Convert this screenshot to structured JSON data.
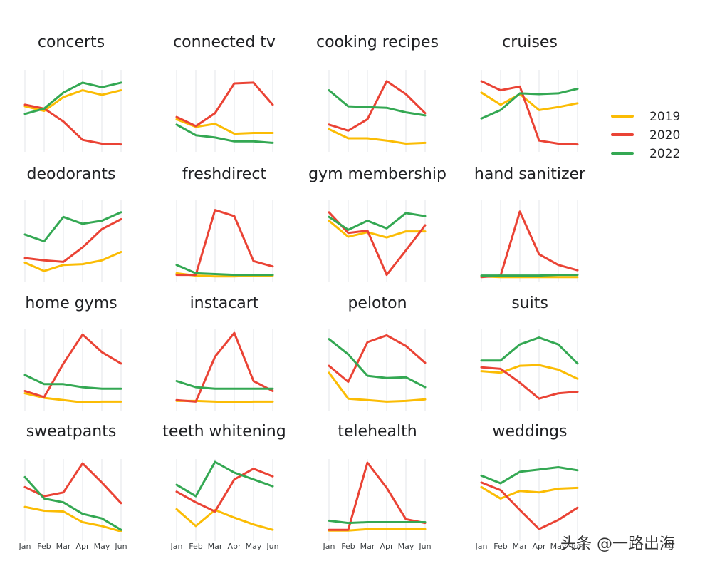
{
  "chart_data": {
    "type": "line",
    "months": [
      "Jan",
      "Feb",
      "Mar",
      "Apr",
      "May",
      "Jun"
    ],
    "ylim": [
      0,
      100
    ],
    "grid": "vertical lines at each month",
    "legend_placement": "right",
    "series_legend": [
      {
        "name": "2019",
        "color": "#fbbc04"
      },
      {
        "name": "2020",
        "color": "#ea4335"
      },
      {
        "name": "2022",
        "color": "#34a853"
      }
    ],
    "panels": [
      {
        "title": "concerts",
        "series": {
          "2019": [
            56,
            50,
            68,
            77,
            71,
            77
          ],
          "2020": [
            58,
            53,
            36,
            12,
            7,
            6
          ],
          "2022": [
            46,
            53,
            74,
            87,
            81,
            87
          ]
        }
      },
      {
        "title": "connected tv",
        "series": {
          "2019": [
            39,
            29,
            33,
            20,
            21,
            21
          ],
          "2020": [
            42,
            30,
            47,
            86,
            87,
            58
          ],
          "2022": [
            32,
            18,
            15,
            10,
            10,
            8
          ]
        }
      },
      {
        "title": "cooking recipes",
        "series": {
          "2019": [
            26,
            14,
            14,
            11,
            7,
            8
          ],
          "2020": [
            32,
            24,
            39,
            89,
            72,
            47
          ],
          "2022": [
            77,
            56,
            55,
            54,
            48,
            44
          ]
        }
      },
      {
        "title": "cruises",
        "series": {
          "2019": [
            74,
            58,
            72,
            51,
            55,
            60
          ],
          "2020": [
            89,
            77,
            82,
            11,
            7,
            6
          ],
          "2022": [
            40,
            51,
            73,
            72,
            73,
            79
          ]
        }
      },
      {
        "title": "deodorants",
        "series": {
          "2019": [
            22,
            11,
            19,
            20,
            25,
            36
          ],
          "2020": [
            28,
            25,
            23,
            42,
            66,
            79
          ],
          "2022": [
            59,
            50,
            82,
            73,
            77,
            88
          ]
        }
      },
      {
        "title": "freshdirect",
        "series": {
          "2019": [
            8,
            5,
            4,
            4,
            5,
            5
          ],
          "2020": [
            6,
            6,
            91,
            83,
            24,
            17
          ],
          "2022": [
            19,
            8,
            7,
            6,
            6,
            6
          ]
        }
      },
      {
        "title": "gym membership",
        "series": {
          "2019": [
            77,
            56,
            62,
            55,
            63,
            63
          ],
          "2020": [
            88,
            61,
            64,
            6,
            38,
            71
          ],
          "2022": [
            82,
            65,
            77,
            67,
            87,
            83
          ]
        }
      },
      {
        "title": "hand sanitizer",
        "series": {
          "2019": [
            4,
            3,
            3,
            3,
            3,
            3
          ],
          "2020": [
            3,
            5,
            89,
            33,
            19,
            12
          ],
          "2022": [
            5,
            5,
            5,
            5,
            6,
            6
          ]
        }
      },
      {
        "title": "home gyms",
        "series": {
          "2019": [
            19,
            13,
            10,
            7,
            8,
            8
          ],
          "2020": [
            22,
            14,
            58,
            96,
            73,
            58
          ],
          "2022": [
            43,
            31,
            31,
            27,
            25,
            25
          ]
        }
      },
      {
        "title": "instacart",
        "series": {
          "2019": [
            9,
            9,
            8,
            7,
            8,
            8
          ],
          "2020": [
            10,
            8,
            67,
            98,
            35,
            22
          ],
          "2022": [
            35,
            27,
            25,
            25,
            25,
            25
          ]
        }
      },
      {
        "title": "peloton",
        "series": {
          "2019": [
            46,
            12,
            10,
            8,
            9,
            11
          ],
          "2020": [
            55,
            34,
            86,
            95,
            81,
            59
          ],
          "2022": [
            90,
            70,
            42,
            39,
            40,
            27
          ]
        }
      },
      {
        "title": "suits",
        "series": {
          "2019": [
            48,
            46,
            55,
            56,
            50,
            38
          ],
          "2020": [
            53,
            51,
            33,
            12,
            19,
            21
          ],
          "2022": [
            62,
            62,
            83,
            92,
            83,
            58
          ]
        }
      },
      {
        "title": "sweatpants",
        "series": {
          "2019": [
            41,
            36,
            35,
            21,
            16,
            9
          ],
          "2020": [
            67,
            55,
            60,
            98,
            73,
            46
          ],
          "2022": [
            80,
            52,
            47,
            32,
            26,
            11
          ]
        }
      },
      {
        "title": "teeth whitening",
        "series": {
          "2019": [
            38,
            16,
            37,
            27,
            18,
            11
          ],
          "2020": [
            61,
            47,
            35,
            77,
            91,
            81
          ],
          "2022": [
            70,
            55,
            100,
            86,
            77,
            68
          ]
        }
      },
      {
        "title": "telehealth",
        "series": {
          "2019": [
            10,
            10,
            12,
            12,
            12,
            12
          ],
          "2020": [
            11,
            11,
            99,
            66,
            25,
            20
          ],
          "2022": [
            23,
            20,
            21,
            21,
            21,
            21
          ]
        }
      },
      {
        "title": "weddings",
        "series": {
          "2019": [
            67,
            52,
            62,
            60,
            65,
            66
          ],
          "2020": [
            73,
            63,
            37,
            12,
            24,
            40
          ],
          "2022": [
            82,
            72,
            87,
            90,
            93,
            89
          ]
        }
      }
    ],
    "x_tick_labels_shown_on": [
      "sweatpants",
      "teeth whitening",
      "telehealth",
      "weddings"
    ]
  },
  "watermark": {
    "text": "头条 @一路出海"
  }
}
